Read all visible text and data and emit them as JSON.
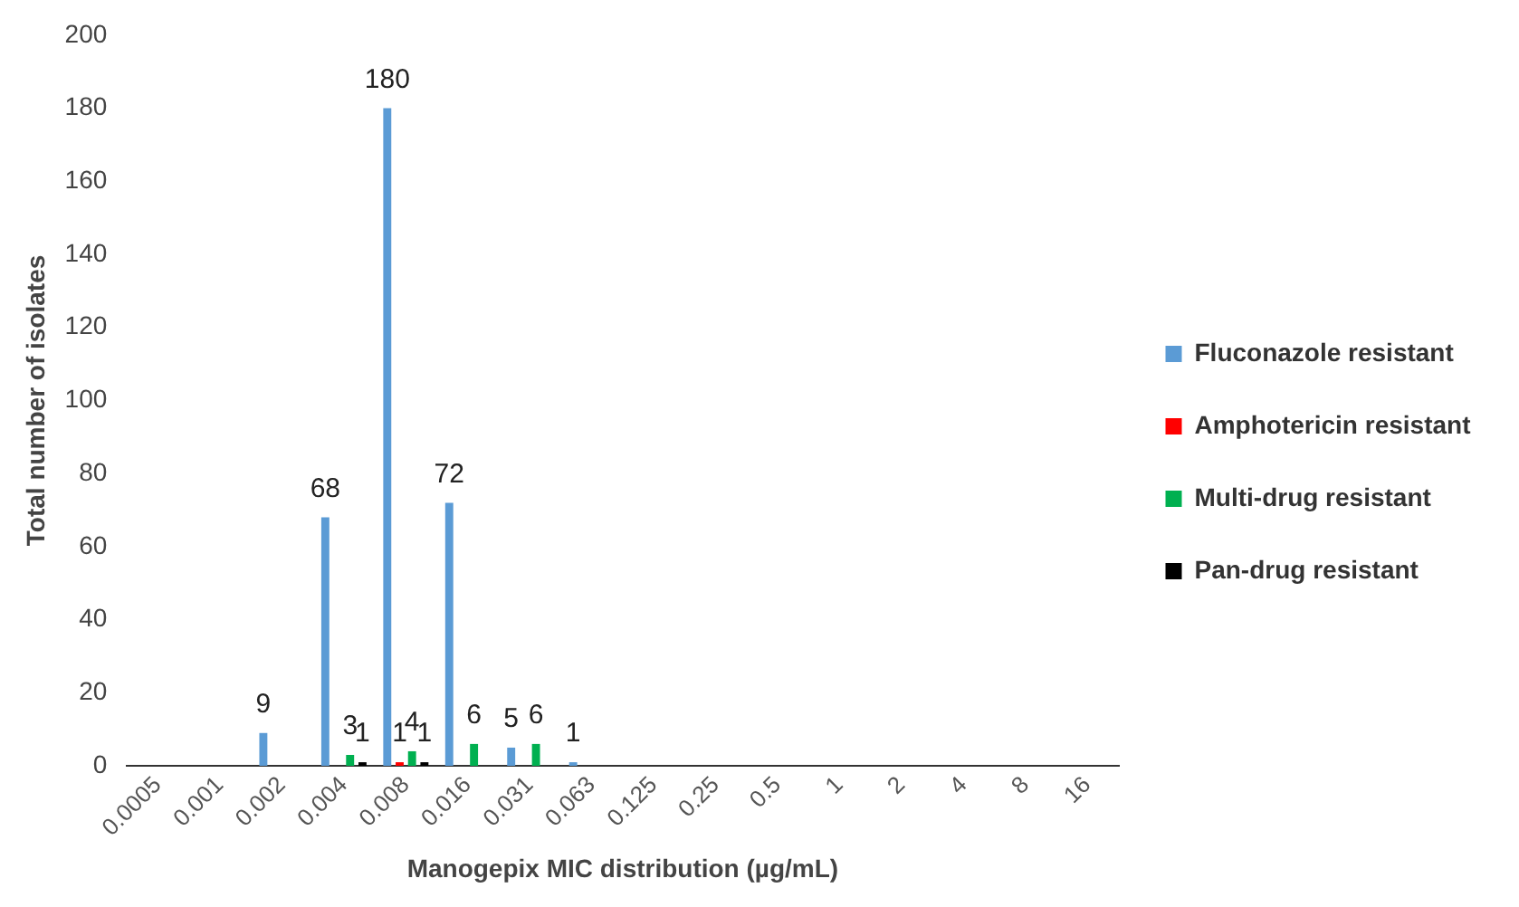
{
  "chart_data": {
    "type": "bar",
    "xlabel": "Manogepix MIC distribution (µg/mL)",
    "ylabel": "Total number of isolates",
    "categories": [
      "0.0005",
      "0.001",
      "0.002",
      "0.004",
      "0.008",
      "0.016",
      "0.031",
      "0.063",
      "0.125",
      "0.25",
      "0.5",
      "1",
      "2",
      "4",
      "8",
      "16"
    ],
    "series": [
      {
        "name": "Fluconazole resistant",
        "color": "#5b9bd5",
        "values": [
          null,
          null,
          9,
          68,
          180,
          72,
          5,
          1,
          null,
          null,
          null,
          null,
          null,
          null,
          null,
          null
        ]
      },
      {
        "name": "Amphotericin resistant",
        "color": "#ff0000",
        "values": [
          null,
          null,
          null,
          null,
          1,
          null,
          null,
          null,
          null,
          null,
          null,
          null,
          null,
          null,
          null,
          null
        ]
      },
      {
        "name": "Multi-drug resistant",
        "color": "#00b050",
        "values": [
          null,
          null,
          null,
          3,
          4,
          6,
          6,
          null,
          null,
          null,
          null,
          null,
          null,
          null,
          null,
          null
        ]
      },
      {
        "name": "Pan-drug resistant",
        "color": "#000000",
        "values": [
          null,
          null,
          null,
          1,
          1,
          null,
          null,
          null,
          null,
          null,
          null,
          null,
          null,
          null,
          null,
          null
        ]
      }
    ],
    "ylim": [
      0,
      200
    ],
    "yticks": [
      0,
      20,
      40,
      60,
      80,
      100,
      120,
      140,
      160,
      180,
      200
    ],
    "grid": false,
    "legend": "right",
    "data_labels": true
  }
}
